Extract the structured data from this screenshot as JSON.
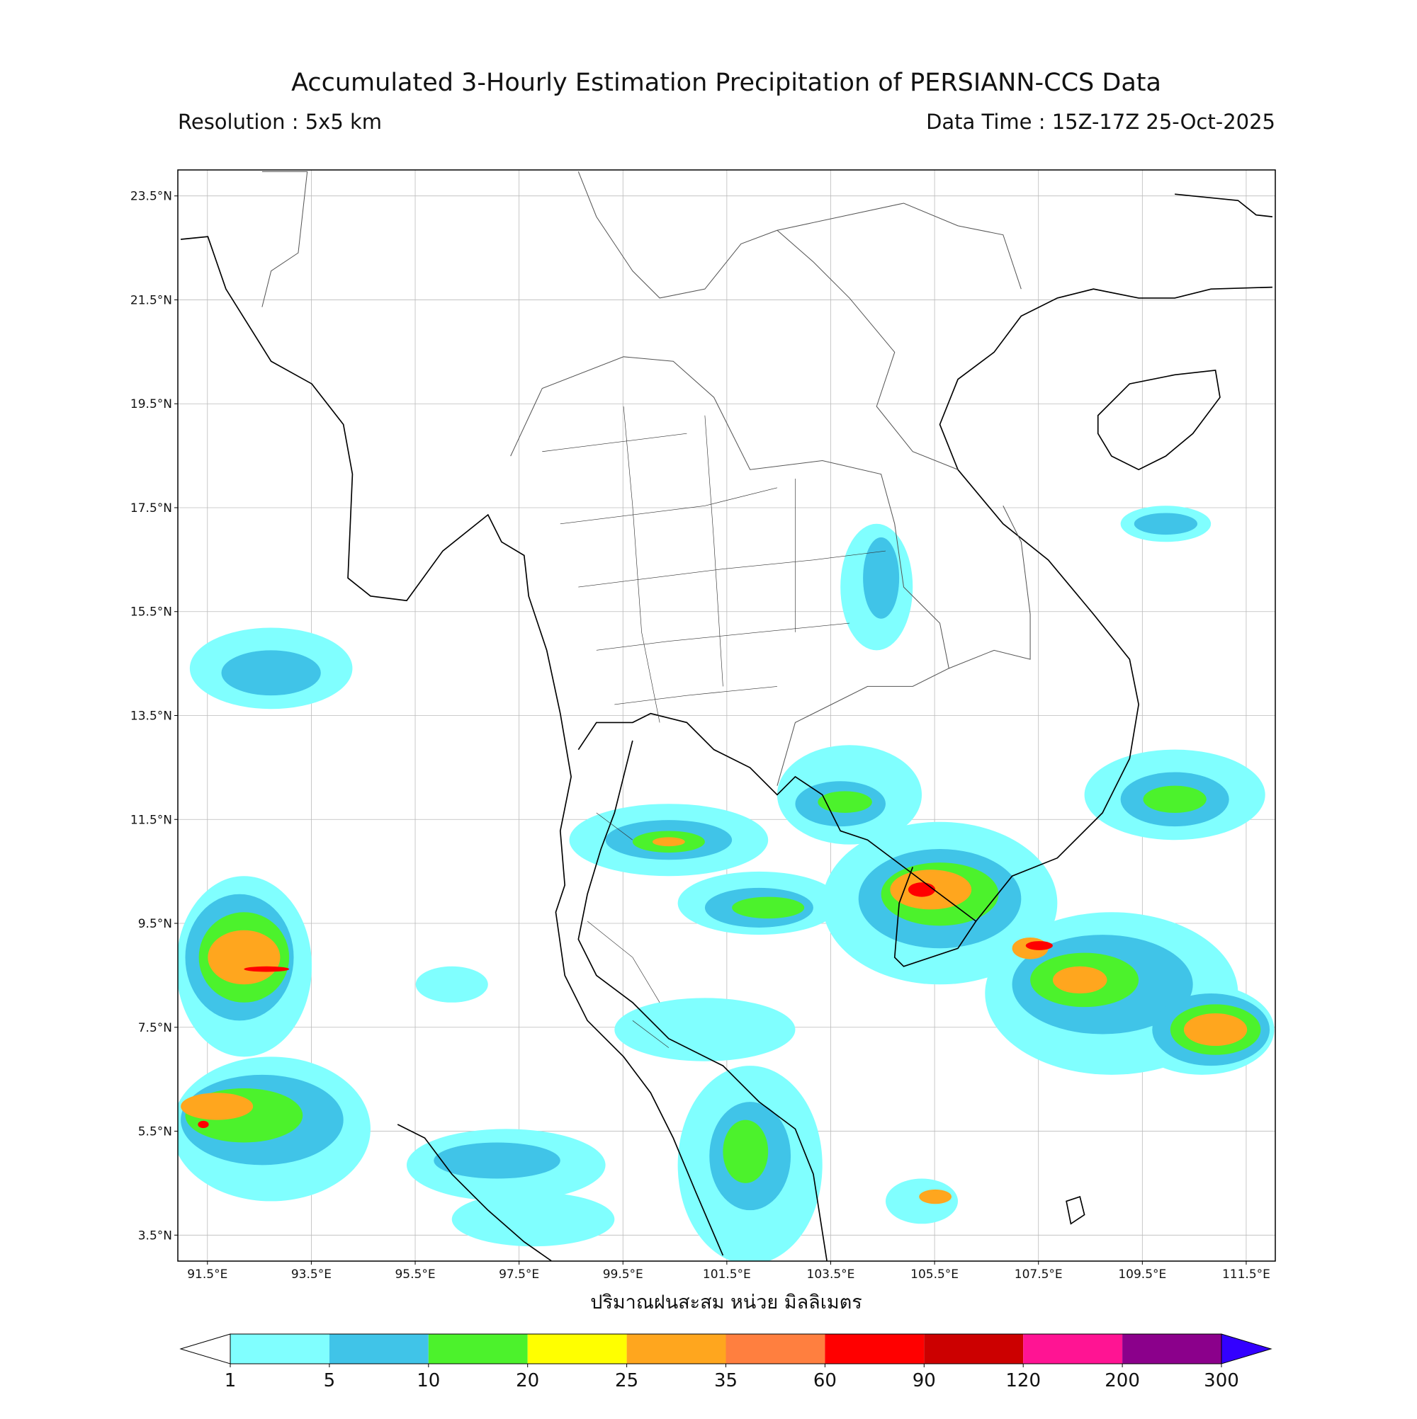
{
  "title": "Accumulated 3-Hourly Estimation Precipitation of PERSIANN-CCS Data",
  "resolution": "Resolution : 5x5 km",
  "data_time": "Data Time : 15Z-17Z 25-Oct-2025",
  "map": {
    "lonlim": [
      90.93,
      112.06
    ],
    "latlim": [
      3.0,
      24.0
    ],
    "lon_ticks": [
      {
        "value": 91.5,
        "label": "91.5°E"
      },
      {
        "value": 93.5,
        "label": "93.5°E"
      },
      {
        "value": 95.5,
        "label": "95.5°E"
      },
      {
        "value": 97.5,
        "label": "97.5°E"
      },
      {
        "value": 99.5,
        "label": "99.5°E"
      },
      {
        "value": 101.5,
        "label": "101.5°E"
      },
      {
        "value": 103.5,
        "label": "103.5°E"
      },
      {
        "value": 105.5,
        "label": "105.5°E"
      },
      {
        "value": 107.5,
        "label": "107.5°E"
      },
      {
        "value": 109.5,
        "label": "109.5°E"
      },
      {
        "value": 111.5,
        "label": "111.5°E"
      }
    ],
    "lat_ticks": [
      {
        "value": 23.5,
        "label": "23.5°N"
      },
      {
        "value": 21.5,
        "label": "21.5°N"
      },
      {
        "value": 19.5,
        "label": "19.5°N"
      },
      {
        "value": 17.5,
        "label": "17.5°N"
      },
      {
        "value": 15.5,
        "label": "15.5°N"
      },
      {
        "value": 13.5,
        "label": "13.5°N"
      },
      {
        "value": 11.5,
        "label": "11.5°N"
      },
      {
        "value": 9.5,
        "label": "9.5°N"
      },
      {
        "value": 7.5,
        "label": "7.5°N"
      },
      {
        "value": 5.5,
        "label": "5.5°N"
      },
      {
        "value": 3.5,
        "label": "3.5°N"
      }
    ],
    "grid": true
  },
  "xlabel": "ปริมาณฝนสะสม หน่วย มิลลิเมตร",
  "colorbar": {
    "levels": [
      1,
      5,
      10,
      20,
      25,
      35,
      60,
      90,
      120,
      200,
      300
    ],
    "colors": [
      "#80ffff",
      "#40c4e8",
      "#4cf22c",
      "#ffff00",
      "#ffa61e",
      "#ff7f3f",
      "#ff0000",
      "#cc0000",
      "#ff1493",
      "#8b008b"
    ],
    "under_color": "#ffffff",
    "over_color": "#3300ff"
  }
}
